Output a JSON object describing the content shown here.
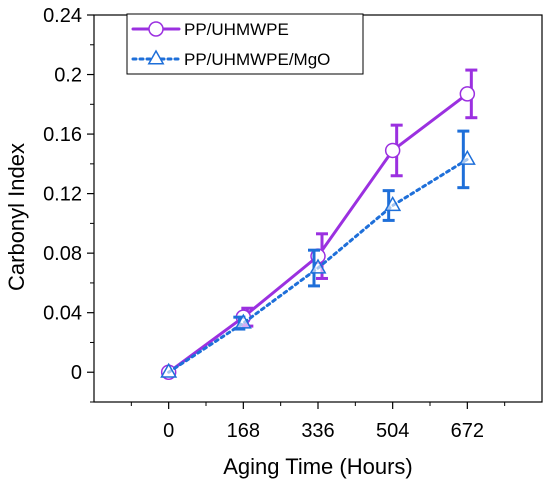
{
  "chart_data": {
    "type": "line",
    "xlabel": "Aging Time (Hours)",
    "ylabel": "Carbonyl Index",
    "x": [
      0,
      168,
      336,
      504,
      672
    ],
    "x_ticks": [
      "0",
      "168",
      "336",
      "504",
      "672"
    ],
    "xlim": [
      -168,
      840
    ],
    "y_ticks": [
      "0",
      "0.04",
      "0.08",
      "0.12",
      "0.16",
      "0.2",
      "0.24"
    ],
    "ylim": [
      -0.02,
      0.24
    ],
    "grid": false,
    "legend_position": "top-left",
    "series": [
      {
        "name": "PP/UHMWPE",
        "values": [
          0,
          0.037,
          0.078,
          0.149,
          0.187
        ],
        "errors": [
          0,
          0.006,
          0.015,
          0.017,
          0.016
        ],
        "color": "#9b30e0",
        "marker": "circle",
        "line_style": "solid"
      },
      {
        "name": "PP/UHMWPE/MgO",
        "values": [
          0,
          0.033,
          0.07,
          0.112,
          0.143
        ],
        "errors": [
          0,
          0.004,
          0.012,
          0.01,
          0.019
        ],
        "color": "#1e6fd9",
        "marker": "triangle",
        "line_style": "dotted"
      }
    ]
  }
}
